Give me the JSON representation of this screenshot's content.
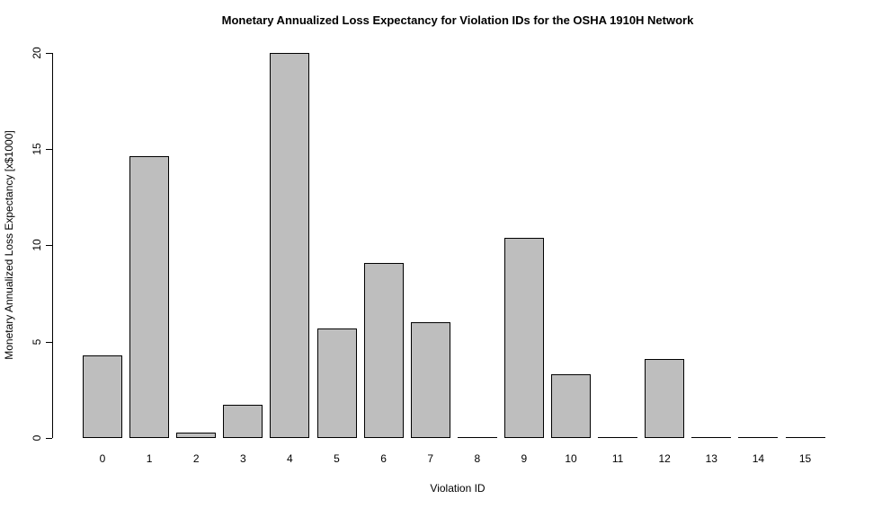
{
  "chart_data": {
    "type": "bar",
    "title": "Monetary Annualized Loss Expectancy for Violation IDs for the OSHA 1910H Network",
    "xlabel": "Violation ID",
    "ylabel": "Monetary Annualized Loss Expectancy [x$1000]",
    "categories": [
      "0",
      "1",
      "2",
      "3",
      "4",
      "5",
      "6",
      "7",
      "8",
      "9",
      "10",
      "11",
      "12",
      "13",
      "14",
      "15"
    ],
    "values": [
      4.3,
      14.6,
      0.3,
      1.7,
      20.0,
      5.7,
      9.1,
      6.0,
      0.05,
      10.4,
      3.3,
      0,
      4.1,
      0,
      0,
      0
    ],
    "ylim": [
      0,
      20
    ],
    "yticks": [
      0,
      5,
      10,
      15,
      20
    ],
    "grid": false,
    "legend": null,
    "bar_fill_color": "#BEBEBE",
    "bar_border_color": "#000000",
    "background_color": "#FFFFFF"
  }
}
